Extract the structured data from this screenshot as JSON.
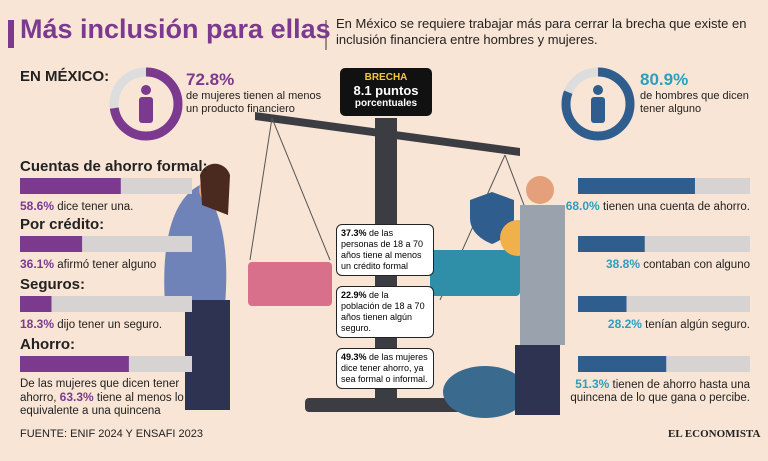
{
  "header": {
    "title": "Más inclusión para ellas",
    "intro": "En México se requiere trabajar más para cerrar la brecha que existe en inclusión financiera entre hombres y mujeres."
  },
  "summary": {
    "label": "EN MÉXICO:",
    "women": {
      "value": 72.8,
      "value_label": "72.8%",
      "text": "de mujeres tienen al menos un producto financiero",
      "color": "#7b3a8e"
    },
    "men": {
      "value": 80.9,
      "value_label": "80.9%",
      "text": "de hombres que dicen tener alguno",
      "color": "#2f5d8e"
    },
    "gap": {
      "title": "BRECHA",
      "text": "8.1 puntos",
      "subtext": "porcentuales"
    }
  },
  "scale_max": 100,
  "sections": [
    {
      "title": "Cuentas de ahorro formal:",
      "women": {
        "value": 58.6,
        "value_label": "58.6%",
        "text": "dice tener una."
      },
      "men": {
        "value": 68.0,
        "value_label": "68.0%",
        "text": "tienen una cuenta de ahorro."
      }
    },
    {
      "title": "Por crédito:",
      "women": {
        "value": 36.1,
        "value_label": "36.1%",
        "text": "afirmó tener alguno"
      },
      "men": {
        "value": 38.8,
        "value_label": "38.8%",
        "text": "contaban con alguno"
      }
    },
    {
      "title": "Seguros:",
      "women": {
        "value": 18.3,
        "value_label": "18.3%",
        "text": "dijo tener un seguro."
      },
      "men": {
        "value": 28.2,
        "value_label": "28.2%",
        "text": "tenían algún seguro."
      }
    },
    {
      "title": "Ahorro:",
      "women": {
        "prefix": "De las mujeres que dicen tener ahorro,",
        "value": 63.3,
        "value_label": "63.3%",
        "text": "tiene al menos lo equivalente a una quincena"
      },
      "men": {
        "value": 51.3,
        "value_label": "51.3%",
        "text": "tienen de ahorro hasta una quincena de lo que gana o percibe."
      }
    }
  ],
  "notes": [
    {
      "value_label": "37.3%",
      "text": "de las personas de 18 a 70 años tiene al menos un crédito formal"
    },
    {
      "value_label": "22.9%",
      "text": "de la población de 18 a 70 años tienen algún seguro."
    },
    {
      "value_label": "49.3%",
      "text": "de las mujeres dice tener ahorro, ya sea formal o informal."
    }
  ],
  "footer": {
    "source": "FUENTE: ENIF 2024 Y ENSAFI 2023",
    "brand": "EL ECONOMISTA"
  }
}
